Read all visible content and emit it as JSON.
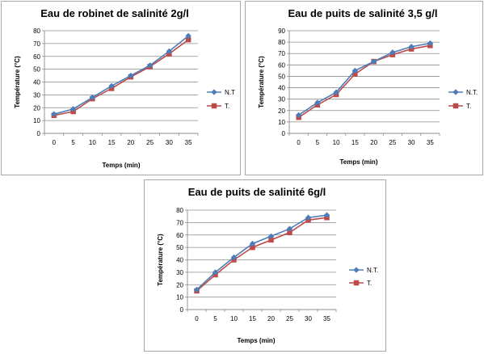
{
  "chart_data": [
    {
      "type": "line",
      "title": "Eau de robinet de salinité 2g/l",
      "xlabel": "Temps (min)",
      "ylabel": "Température (°C)",
      "categories": [
        "0",
        "5",
        "10",
        "15",
        "20",
        "25",
        "30",
        "35"
      ],
      "ylim": [
        0,
        80
      ],
      "ystep": 10,
      "grid": true,
      "legend": "right",
      "series": [
        {
          "name": "N.T",
          "color": "#4a7ebb",
          "marker": "diamond",
          "values": [
            15,
            19,
            28,
            37,
            45,
            53,
            64,
            76
          ]
        },
        {
          "name": "T.",
          "color": "#be4b48",
          "marker": "square",
          "values": [
            14,
            17,
            27,
            35,
            44,
            52,
            62,
            73
          ]
        }
      ]
    },
    {
      "type": "line",
      "title": "Eau de puits de salinité 3,5 g/l",
      "xlabel": "Temps (min)",
      "ylabel": "Température (°C)",
      "categories": [
        "0",
        "5",
        "10",
        "15",
        "20",
        "25",
        "30",
        "35"
      ],
      "ylim": [
        0,
        90
      ],
      "ystep": 10,
      "grid": true,
      "legend": "right",
      "series": [
        {
          "name": "N.T.",
          "color": "#4a7ebb",
          "marker": "diamond",
          "values": [
            16,
            27,
            36,
            55,
            63,
            71,
            76,
            79
          ]
        },
        {
          "name": "T.",
          "color": "#be4b48",
          "marker": "square",
          "values": [
            14,
            25,
            34,
            52,
            63,
            69,
            74,
            77
          ]
        }
      ]
    },
    {
      "type": "line",
      "title": "Eau de puits de salinité 6g/l",
      "xlabel": "Temps (min)",
      "ylabel": "Température (°C)",
      "categories": [
        "0",
        "5",
        "10",
        "15",
        "20",
        "25",
        "30",
        "35"
      ],
      "ylim": [
        0,
        80
      ],
      "ystep": 10,
      "grid": true,
      "legend": "right",
      "series": [
        {
          "name": "N.T.",
          "color": "#4a7ebb",
          "marker": "diamond",
          "values": [
            16,
            30,
            42,
            53,
            59,
            65,
            74,
            76
          ]
        },
        {
          "name": "T.",
          "color": "#be4b48",
          "marker": "square",
          "values": [
            15,
            28,
            40,
            50,
            56,
            62,
            72,
            74
          ]
        }
      ]
    }
  ]
}
